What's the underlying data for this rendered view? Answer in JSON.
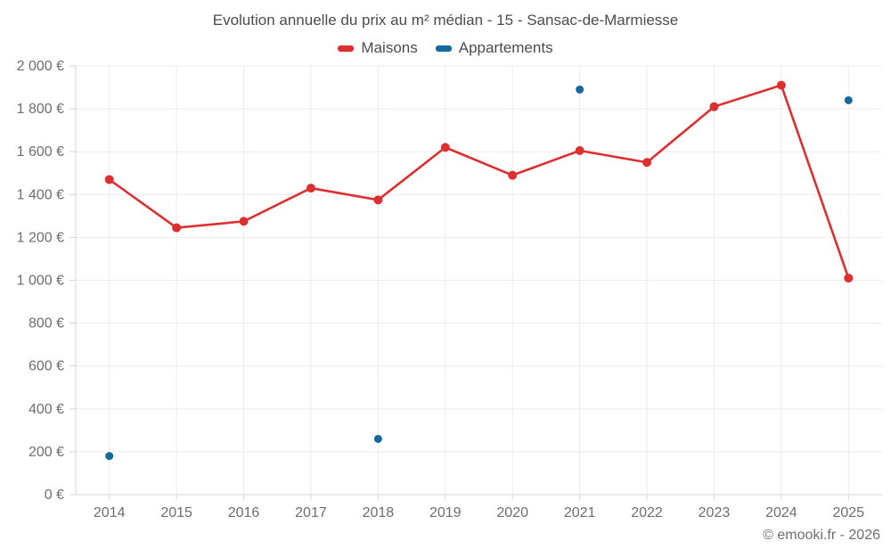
{
  "title": "Evolution annuelle du prix au m² médian - 15 - Sansac-de-Marmiesse",
  "watermark": "© emooki.fr - 2026",
  "colors": {
    "maisons": "#dc3030",
    "appartements": "#15699e",
    "grid": "#ececec",
    "axis": "#d4d4d4",
    "tick_text": "#6e6e6e",
    "title_text": "#4c4c4c"
  },
  "legend": {
    "items": [
      {
        "label": "Maisons",
        "color": "#dc3030"
      },
      {
        "label": "Appartements",
        "color": "#15699e"
      }
    ]
  },
  "chart_data": {
    "type": "line",
    "title": "Evolution annuelle du prix au m² médian - 15 - Sansac-de-Marmiesse",
    "xlabel": "",
    "ylabel": "",
    "categories": [
      "2014",
      "2015",
      "2016",
      "2017",
      "2018",
      "2019",
      "2020",
      "2021",
      "2022",
      "2023",
      "2024",
      "2025"
    ],
    "series": [
      {
        "name": "Maisons",
        "color": "#dc3030",
        "mode": "line+markers",
        "values": [
          1470,
          1245,
          1275,
          1430,
          1375,
          1620,
          1490,
          1605,
          1550,
          1810,
          1910,
          1010
        ]
      },
      {
        "name": "Appartements",
        "color": "#15699e",
        "mode": "markers",
        "values": [
          180,
          null,
          null,
          null,
          260,
          null,
          null,
          1890,
          null,
          null,
          null,
          1840
        ]
      }
    ],
    "ylim": [
      0,
      2000
    ],
    "ytick_step": 200,
    "ytick_suffix": " €",
    "grid": true,
    "legend_position": "top",
    "annotations": [
      "© emooki.fr - 2026"
    ]
  }
}
